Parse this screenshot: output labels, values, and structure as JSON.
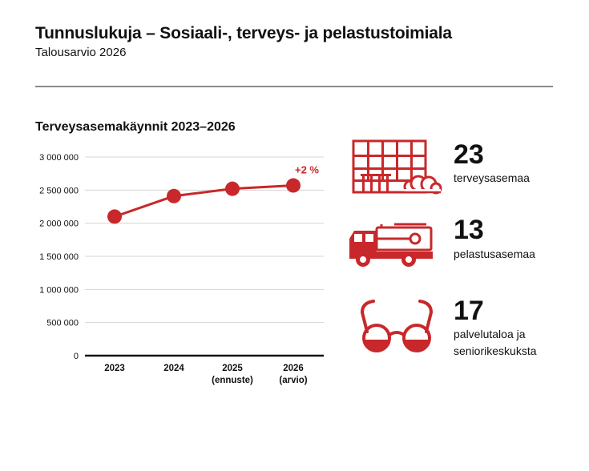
{
  "header": {
    "title": "Tunnuslukuja – Sosiaali-, terveys- ja pelastustoimiala",
    "subtitle": "Talousarvio 2026"
  },
  "chart_data": {
    "type": "line",
    "title": "Terveysasemakäynnit 2023–2026",
    "xlabel": "",
    "ylabel": "",
    "ylim": [
      0,
      3000000
    ],
    "yticks": [
      {
        "value": 0,
        "label": "0"
      },
      {
        "value": 500000,
        "label": "500 000"
      },
      {
        "value": 1000000,
        "label": "1 000 000"
      },
      {
        "value": 1500000,
        "label": "1 500 000"
      },
      {
        "value": 2000000,
        "label": "2 000 000"
      },
      {
        "value": 2500000,
        "label": "2 500 000"
      },
      {
        "value": 3000000,
        "label": "3 000 000"
      }
    ],
    "categories": [
      {
        "year": "2023",
        "note": ""
      },
      {
        "year": "2024",
        "note": ""
      },
      {
        "year": "2025",
        "note": "(ennuste)"
      },
      {
        "year": "2026",
        "note": "(arvio)"
      }
    ],
    "values": [
      2100000,
      2410000,
      2520000,
      2570000
    ],
    "annotation": "+2 %",
    "grid": true,
    "color": "#c8282b"
  },
  "stats": [
    {
      "number": "23",
      "label": "terveysasemaa",
      "icon": "health-station-building-icon"
    },
    {
      "number": "13",
      "label": "pelastusasemaa",
      "icon": "fire-truck-icon"
    },
    {
      "number": "17",
      "label": "palvelutaloa ja seniorikeskuksta",
      "icon": "glasses-icon"
    }
  ]
}
